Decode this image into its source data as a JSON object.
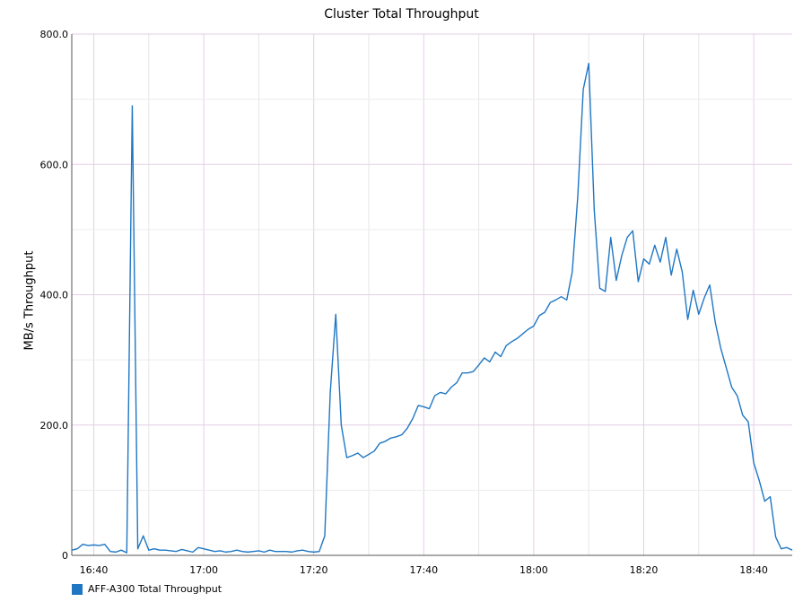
{
  "chart_data": {
    "type": "line",
    "title": "Cluster Total Throughput",
    "xlabel": "",
    "ylabel": "MB/s Throughput",
    "ylim": [
      0,
      800
    ],
    "y_ticks": [
      "0",
      "200.0",
      "400.0",
      "600.0",
      "800.0"
    ],
    "y_tick_values": [
      0,
      200,
      400,
      600,
      800
    ],
    "x_ticks": [
      "16:40",
      "17:00",
      "17:20",
      "17:40",
      "18:00",
      "18:20",
      "18:40"
    ],
    "x_tick_values": [
      "16:40",
      "17:00",
      "17:20",
      "17:40",
      "18:00",
      "18:20",
      "18:40"
    ],
    "xlim": [
      "16:36",
      "18:47"
    ],
    "grid": true,
    "legend_position": "bottom-left",
    "series": [
      {
        "name": "AFF-A300 Total Throughput",
        "color": "#1f77c4",
        "points": [
          [
            "16:36",
            8
          ],
          [
            "16:37",
            10
          ],
          [
            "16:38",
            17
          ],
          [
            "16:39",
            15
          ],
          [
            "16:40",
            16
          ],
          [
            "16:41",
            15
          ],
          [
            "16:42",
            17
          ],
          [
            "16:43",
            6
          ],
          [
            "16:44",
            5
          ],
          [
            "16:45",
            8
          ],
          [
            "16:46",
            4
          ],
          [
            "16:47",
            690
          ],
          [
            "16:48",
            10
          ],
          [
            "16:49",
            30
          ],
          [
            "16:50",
            8
          ],
          [
            "16:51",
            10
          ],
          [
            "16:52",
            8
          ],
          [
            "16:53",
            8
          ],
          [
            "16:54",
            7
          ],
          [
            "16:55",
            6
          ],
          [
            "16:56",
            9
          ],
          [
            "16:57",
            7
          ],
          [
            "16:58",
            5
          ],
          [
            "16:59",
            12
          ],
          [
            "17:00",
            10
          ],
          [
            "17:01",
            8
          ],
          [
            "17:02",
            6
          ],
          [
            "17:03",
            7
          ],
          [
            "17:04",
            5
          ],
          [
            "17:05",
            6
          ],
          [
            "17:06",
            8
          ],
          [
            "17:07",
            6
          ],
          [
            "17:08",
            5
          ],
          [
            "17:09",
            6
          ],
          [
            "17:10",
            7
          ],
          [
            "17:11",
            5
          ],
          [
            "17:12",
            8
          ],
          [
            "17:13",
            6
          ],
          [
            "17:14",
            6
          ],
          [
            "17:15",
            6
          ],
          [
            "17:16",
            5
          ],
          [
            "17:17",
            7
          ],
          [
            "17:18",
            8
          ],
          [
            "17:19",
            6
          ],
          [
            "17:20",
            5
          ],
          [
            "17:21",
            6
          ],
          [
            "17:22",
            30
          ],
          [
            "17:23",
            250
          ],
          [
            "17:24",
            370
          ],
          [
            "17:25",
            200
          ],
          [
            "17:26",
            150
          ],
          [
            "17:27",
            153
          ],
          [
            "17:28",
            157
          ],
          [
            "17:29",
            150
          ],
          [
            "17:30",
            155
          ],
          [
            "17:31",
            160
          ],
          [
            "17:32",
            172
          ],
          [
            "17:33",
            175
          ],
          [
            "17:34",
            180
          ],
          [
            "17:35",
            182
          ],
          [
            "17:36",
            185
          ],
          [
            "17:37",
            195
          ],
          [
            "17:38",
            210
          ],
          [
            "17:39",
            230
          ],
          [
            "17:40",
            228
          ],
          [
            "17:41",
            225
          ],
          [
            "17:42",
            245
          ],
          [
            "17:43",
            250
          ],
          [
            "17:44",
            248
          ],
          [
            "17:45",
            258
          ],
          [
            "17:46",
            265
          ],
          [
            "17:47",
            280
          ],
          [
            "17:48",
            280
          ],
          [
            "17:49",
            282
          ],
          [
            "17:50",
            292
          ],
          [
            "17:51",
            303
          ],
          [
            "17:52",
            297
          ],
          [
            "17:53",
            312
          ],
          [
            "17:54",
            305
          ],
          [
            "17:55",
            322
          ],
          [
            "17:56",
            328
          ],
          [
            "17:57",
            333
          ],
          [
            "17:58",
            340
          ],
          [
            "17:59",
            347
          ],
          [
            "18:00",
            352
          ],
          [
            "18:01",
            368
          ],
          [
            "18:02",
            373
          ],
          [
            "18:03",
            388
          ],
          [
            "18:04",
            392
          ],
          [
            "18:05",
            397
          ],
          [
            "18:06",
            392
          ],
          [
            "18:07",
            435
          ],
          [
            "18:08",
            550
          ],
          [
            "18:09",
            715
          ],
          [
            "18:10",
            755
          ],
          [
            "18:11",
            530
          ],
          [
            "18:12",
            410
          ],
          [
            "18:13",
            405
          ],
          [
            "18:14",
            488
          ],
          [
            "18:15",
            422
          ],
          [
            "18:16",
            460
          ],
          [
            "18:17",
            488
          ],
          [
            "18:18",
            498
          ],
          [
            "18:19",
            420
          ],
          [
            "18:20",
            455
          ],
          [
            "18:21",
            447
          ],
          [
            "18:22",
            476
          ],
          [
            "18:23",
            450
          ],
          [
            "18:24",
            488
          ],
          [
            "18:25",
            430
          ],
          [
            "18:26",
            470
          ],
          [
            "18:27",
            435
          ],
          [
            "18:28",
            362
          ],
          [
            "18:29",
            407
          ],
          [
            "18:30",
            370
          ],
          [
            "18:31",
            395
          ],
          [
            "18:32",
            415
          ],
          [
            "18:33",
            358
          ],
          [
            "18:34",
            318
          ],
          [
            "18:35",
            288
          ],
          [
            "18:36",
            258
          ],
          [
            "18:37",
            245
          ],
          [
            "18:38",
            215
          ],
          [
            "18:39",
            205
          ],
          [
            "18:40",
            142
          ],
          [
            "18:41",
            115
          ],
          [
            "18:42",
            83
          ],
          [
            "18:43",
            90
          ],
          [
            "18:44",
            28
          ],
          [
            "18:45",
            10
          ],
          [
            "18:46",
            12
          ],
          [
            "18:47",
            8
          ]
        ]
      }
    ]
  }
}
